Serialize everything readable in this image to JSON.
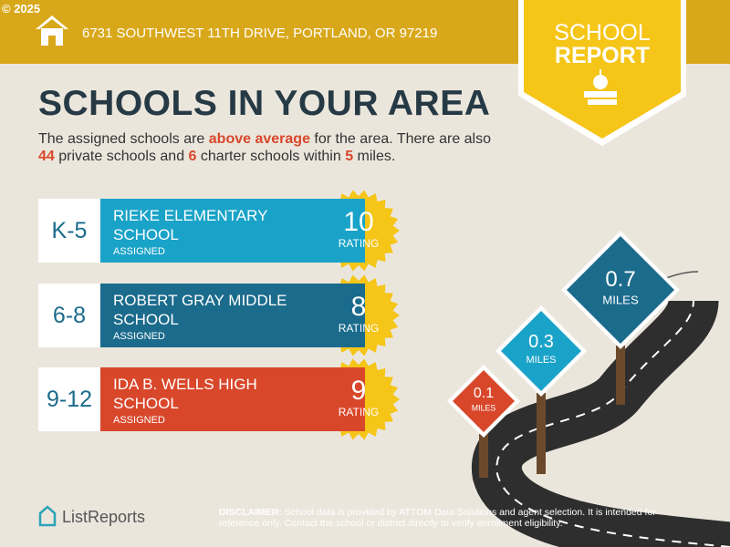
{
  "copyright": "© 2025",
  "address": "6731 SOUTHWEST 11TH DRIVE, PORTLAND, OR 97219",
  "badge": {
    "line1": "SCHOOL",
    "line2": "REPORT"
  },
  "title": "SCHOOLS IN YOUR AREA",
  "intro": [
    "The assigned schools are ",
    "above average",
    " for the area. There are also ",
    44,
    " private schools and ",
    6,
    " charter schools within ",
    5,
    " miles."
  ],
  "schools": [
    {
      "grades": "K-5",
      "name": "RIEKE ELEMENTARY SCHOOL",
      "status": "ASSIGNED",
      "rating": 10,
      "rating_label": "RATING"
    },
    {
      "grades": "6-8",
      "name": "ROBERT GRAY MIDDLE SCHOOL",
      "status": "ASSIGNED",
      "rating": 8,
      "rating_label": "RATING"
    },
    {
      "grades": "9-12",
      "name": "IDA B. WELLS HIGH SCHOOL",
      "status": "ASSIGNED",
      "rating": 9,
      "rating_label": "RATING"
    }
  ],
  "signs": [
    {
      "distance": 0.1,
      "unit": "MILES"
    },
    {
      "distance": 0.3,
      "unit": "MILES"
    },
    {
      "distance": 0.7,
      "unit": "MILES"
    }
  ],
  "brand": "ListReports",
  "disclaimer": {
    "label": "DISCLAIMER:",
    "text": "School data is provided by ATTOM Data Solutions and agent selection. It is intended for reference only. Contact the school or district directly to verify enrollment eligibility."
  }
}
